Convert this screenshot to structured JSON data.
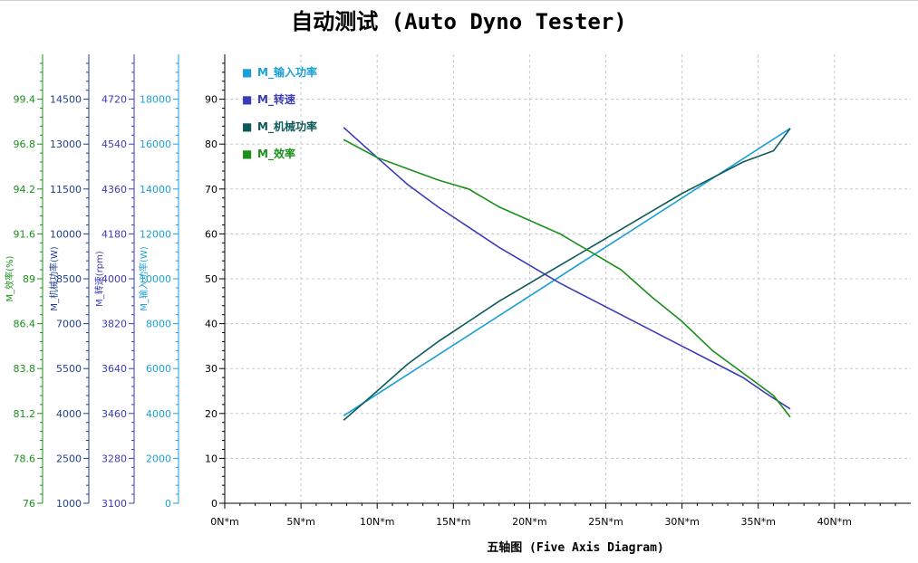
{
  "chart_data": {
    "type": "line",
    "title": "自动测试 (Auto Dyno Tester)",
    "xlabel": "五轴图 (Five Axis Diagram)",
    "x_ticks": [
      "0N*m",
      "5N*m",
      "10N*m",
      "15N*m",
      "20N*m",
      "25N*m",
      "30N*m",
      "35N*m",
      "40N*m"
    ],
    "xlim": [
      0,
      44.8
    ],
    "grid": true,
    "legend_position": "top-left",
    "axes": [
      {
        "id": "main",
        "label": "",
        "ylim": [
          0,
          99
        ],
        "ticks": [
          "0",
          "10",
          "20",
          "30",
          "40",
          "50",
          "60",
          "70",
          "80",
          "90"
        ],
        "color": "#000000"
      },
      {
        "id": "input_power",
        "label": "M_输入功率(W)",
        "ylim": [
          0,
          19800
        ],
        "ticks": [
          "0",
          "2000",
          "4000",
          "6000",
          "8000",
          "10000",
          "12000",
          "14000",
          "16000",
          "18000"
        ],
        "color": "#1a9fd6"
      },
      {
        "id": "speed",
        "label": "M_转速(rpm)",
        "ylim": [
          3100,
          4880
        ],
        "ticks": [
          "3100",
          "3280",
          "3460",
          "3640",
          "3820",
          "4000",
          "4180",
          "4360",
          "4540",
          "4720"
        ],
        "color": "#3b3bb8"
      },
      {
        "id": "mech_power",
        "label": "M_机械功率(W)",
        "ylim": [
          1000,
          15850
        ],
        "ticks": [
          "1000",
          "2500",
          "4000",
          "5500",
          "7000",
          "8500",
          "10000",
          "11500",
          "13000",
          "14500"
        ],
        "color": "#1f3f8c"
      },
      {
        "id": "efficiency",
        "label": "M_效率(%)",
        "ylim": [
          76,
          101.74
        ],
        "ticks": [
          "76",
          "78.6",
          "81.2",
          "83.8",
          "86.4",
          "89",
          "91.6",
          "94.2",
          "96.8",
          "99.4"
        ],
        "color": "#1a8f1a"
      }
    ],
    "legend_marker": "■",
    "series": [
      {
        "name": "M_输入功率",
        "color": "#1a9fd6",
        "x": [
          7.8,
          37.1
        ],
        "y": [
          19.5,
          83.5
        ]
      },
      {
        "name": "M_转速",
        "color": "#3b3bb8",
        "x": [
          7.8,
          10,
          12,
          14,
          16,
          18,
          20,
          22,
          24,
          26,
          28,
          30,
          32,
          34,
          35.5,
          37.1
        ],
        "y": [
          83.7,
          77,
          71,
          66,
          61.5,
          57,
          53,
          49,
          45.5,
          42,
          38.5,
          35,
          31.5,
          28,
          24.5,
          21
        ]
      },
      {
        "name": "M_机械功率",
        "color": "#0d5a5a",
        "x": [
          7.8,
          10,
          12,
          14,
          16,
          18,
          20,
          22,
          24,
          26,
          28,
          30,
          32,
          34,
          36,
          37.1
        ],
        "y": [
          18.5,
          25,
          31,
          36,
          40.5,
          45,
          49,
          53,
          57,
          61,
          65,
          69,
          72.5,
          76,
          78.5,
          83.5
        ]
      },
      {
        "name": "M_效率",
        "color": "#1a8f1a",
        "x": [
          7.8,
          10,
          12,
          14,
          16,
          18,
          20,
          22,
          24,
          26,
          28,
          30,
          32,
          34,
          36,
          37.1
        ],
        "y": [
          81,
          77,
          74.5,
          72,
          70,
          66,
          63,
          60,
          56,
          52,
          46,
          40.5,
          34,
          29,
          24,
          19.2
        ]
      }
    ]
  }
}
